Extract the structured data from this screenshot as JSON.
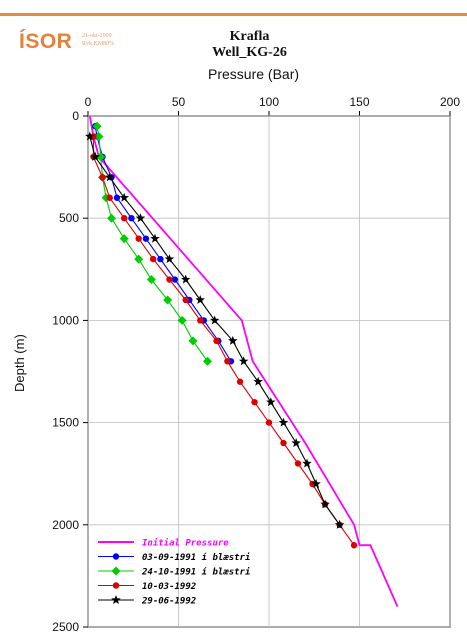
{
  "header": {
    "logo": "ÍSOR",
    "logo_small_1": "21-okt-2009",
    "logo_small_2": "Rvk.KM80%"
  },
  "chart_data": {
    "type": "line",
    "title": "Krafla",
    "subtitle": "Well_KG-26",
    "xlabel": "Pressure (Bar)",
    "ylabel": "Depth (m)",
    "xlim": [
      0,
      200
    ],
    "ylim": [
      2500,
      0
    ],
    "xticks": [
      0,
      50,
      100,
      150,
      200
    ],
    "yticks": [
      0,
      500,
      1000,
      1500,
      2000,
      2500
    ],
    "x_axis_position": "top",
    "grid": true,
    "legend_position": "bottom-left",
    "series": [
      {
        "name": "Initial Pressure",
        "color": "#ff00ff",
        "marker": "none",
        "points": [
          [
            1,
            0
          ],
          [
            3,
            100
          ],
          [
            6,
            200
          ],
          [
            85,
            1000
          ],
          [
            91,
            1200
          ],
          [
            120,
            1600
          ],
          [
            147,
            2000
          ],
          [
            150,
            2100
          ],
          [
            156,
            2100
          ],
          [
            171,
            2400
          ]
        ]
      },
      {
        "name": "03-09-1991 í blæstri",
        "color": "#0000ff",
        "marker": "circle",
        "points": [
          [
            4,
            50
          ],
          [
            5,
            100
          ],
          [
            8,
            200
          ],
          [
            13,
            300
          ],
          [
            16,
            400
          ],
          [
            24,
            500
          ],
          [
            32,
            600
          ],
          [
            40,
            700
          ],
          [
            48,
            800
          ],
          [
            56,
            900
          ],
          [
            64,
            1000
          ],
          [
            72,
            1100
          ],
          [
            79,
            1200
          ]
        ]
      },
      {
        "name": "24-10-1991 í blæstri",
        "color": "#00cc00",
        "marker": "diamond",
        "points": [
          [
            5,
            50
          ],
          [
            6,
            100
          ],
          [
            7,
            200
          ],
          [
            8,
            300
          ],
          [
            10,
            400
          ],
          [
            13,
            500
          ],
          [
            20,
            600
          ],
          [
            28,
            700
          ],
          [
            35,
            800
          ],
          [
            44,
            900
          ],
          [
            52,
            1000
          ],
          [
            58,
            1100
          ],
          [
            66,
            1200
          ]
        ]
      },
      {
        "name": "10-03-1992",
        "color": "#dd0000",
        "marker": "circle",
        "points": [
          [
            3,
            100
          ],
          [
            3,
            200
          ],
          [
            8,
            300
          ],
          [
            12,
            400
          ],
          [
            20,
            500
          ],
          [
            28,
            600
          ],
          [
            36,
            700
          ],
          [
            45,
            800
          ],
          [
            54,
            900
          ],
          [
            62,
            1000
          ],
          [
            71,
            1100
          ],
          [
            77,
            1200
          ],
          [
            84,
            1300
          ],
          [
            92,
            1400
          ],
          [
            100,
            1500
          ],
          [
            108,
            1600
          ],
          [
            116,
            1700
          ],
          [
            124,
            1800
          ],
          [
            131,
            1900
          ],
          [
            139,
            2000
          ],
          [
            147,
            2100
          ]
        ]
      },
      {
        "name": "29-06-1992",
        "color": "#000000",
        "marker": "star",
        "points": [
          [
            1,
            100
          ],
          [
            4,
            200
          ],
          [
            12,
            300
          ],
          [
            20,
            400
          ],
          [
            29,
            500
          ],
          [
            37,
            600
          ],
          [
            45,
            700
          ],
          [
            54,
            800
          ],
          [
            62,
            900
          ],
          [
            70,
            1000
          ],
          [
            80,
            1100
          ],
          [
            86,
            1200
          ],
          [
            94,
            1300
          ],
          [
            101,
            1400
          ],
          [
            108,
            1500
          ],
          [
            115,
            1600
          ],
          [
            121,
            1700
          ],
          [
            126,
            1800
          ],
          [
            131,
            1900
          ],
          [
            139,
            2000
          ]
        ]
      }
    ]
  }
}
